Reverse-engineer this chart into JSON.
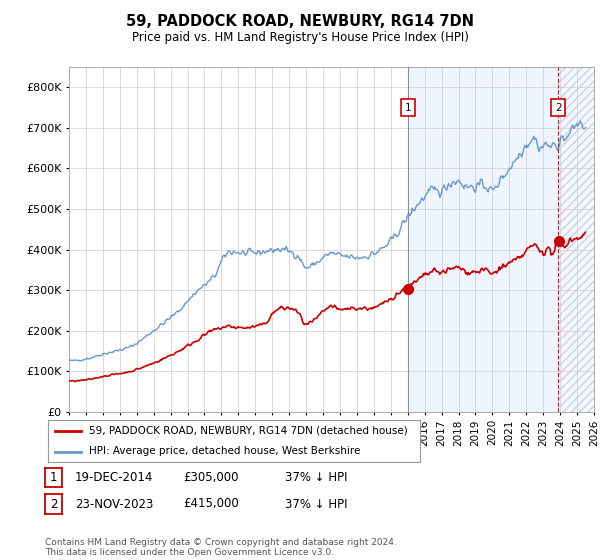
{
  "title": "59, PADDOCK ROAD, NEWBURY, RG14 7DN",
  "subtitle": "Price paid vs. HM Land Registry's House Price Index (HPI)",
  "ylim": [
    0,
    850000
  ],
  "yticks": [
    0,
    100000,
    200000,
    300000,
    400000,
    500000,
    600000,
    700000,
    800000
  ],
  "xstart": 1995,
  "xend": 2026,
  "legend_entries": [
    "59, PADDOCK ROAD, NEWBURY, RG14 7DN (detached house)",
    "HPI: Average price, detached house, West Berkshire"
  ],
  "legend_colors": [
    "#cc0000",
    "#6699cc"
  ],
  "transaction1": {
    "date": "19-DEC-2014",
    "price": 305000,
    "pct": "37%",
    "dir": "↓",
    "x": 2015.0
  },
  "transaction2": {
    "date": "23-NOV-2023",
    "price": 415000,
    "pct": "37%",
    "dir": "↓",
    "x": 2023.9
  },
  "vline1_color": "#888888",
  "vline2_color": "#cc0000",
  "annotation_color": "#cc0000",
  "background_color": "#ffffff",
  "plot_bg_color": "#ffffff",
  "grid_color": "#cccccc",
  "hpi_line_color": "#6699cc",
  "price_line_color": "#cc0000",
  "span_color": "#ddeeff",
  "footer": "Contains HM Land Registry data © Crown copyright and database right 2024.\nThis data is licensed under the Open Government Licence v3.0."
}
